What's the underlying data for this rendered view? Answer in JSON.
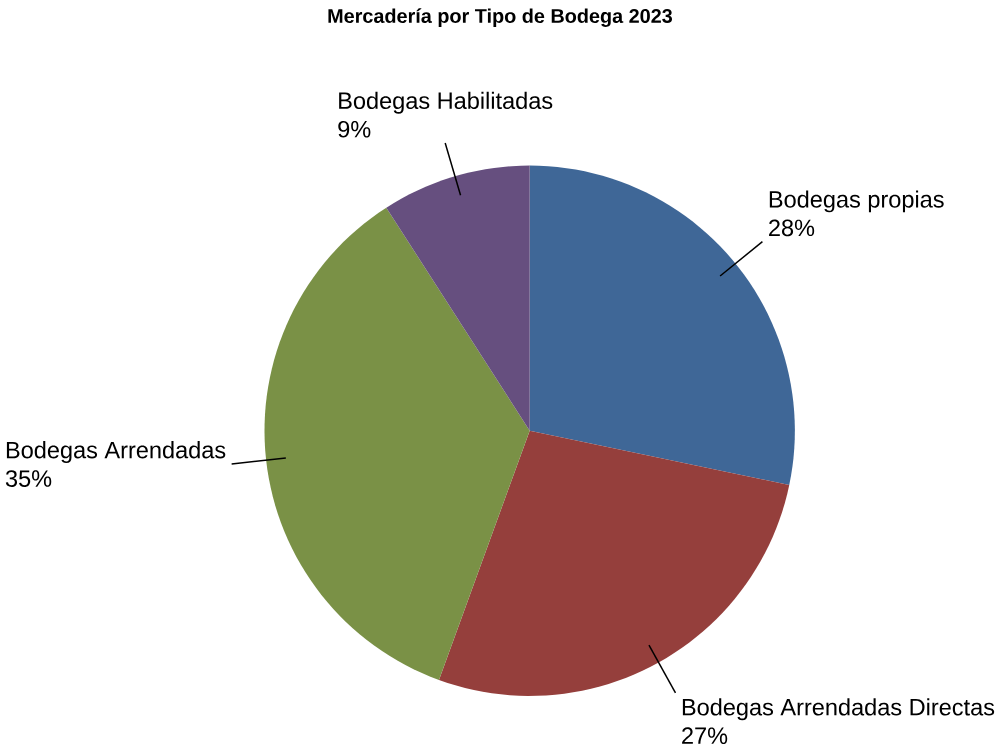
{
  "chart_data": {
    "type": "pie",
    "title": "Mercadería por Tipo de Bodega 2023",
    "categories": [
      "Bodegas propias",
      "Bodegas Arrendadas Directas",
      "Bodegas Arrendadas",
      "Bodegas Habilitadas"
    ],
    "values": [
      28,
      27,
      35,
      9
    ],
    "value_labels": [
      "28%",
      "27%",
      "35%",
      "9%"
    ],
    "colors": [
      "#3f6797",
      "#953f3c",
      "#7a9146",
      "#664f7f"
    ]
  }
}
